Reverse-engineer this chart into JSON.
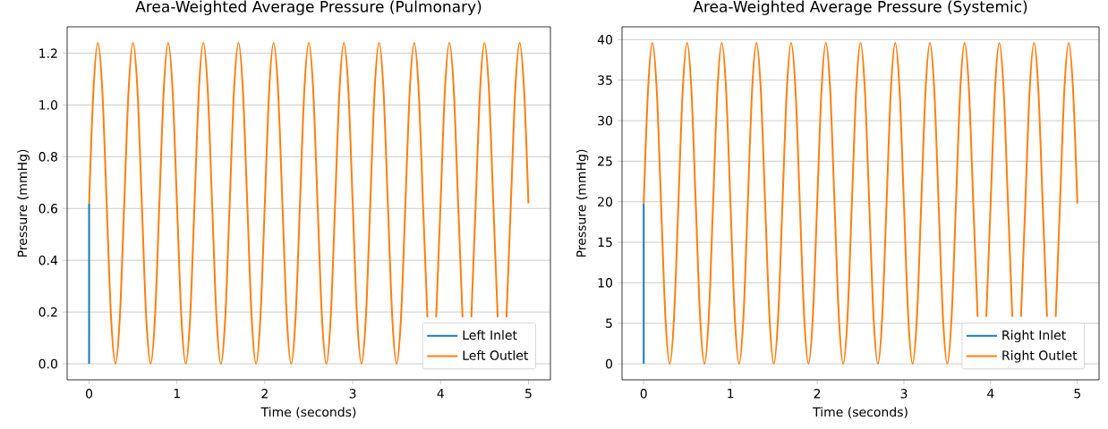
{
  "chart_data": [
    {
      "type": "line",
      "title": "Area-Weighted Average Pressure (Pulmonary)",
      "xlabel": "Time (seconds)",
      "ylabel": "Pressure (mmHg)",
      "xlim": [
        -0.25,
        5.25
      ],
      "ylim": [
        -0.062,
        1.302
      ],
      "xticks": [
        0,
        1,
        2,
        3,
        4,
        5
      ],
      "yticks": [
        {
          "value": 0,
          "label": "0.0"
        },
        {
          "value": 0.2,
          "label": "0.2"
        },
        {
          "value": 0.4,
          "label": "0.4"
        },
        {
          "value": 0.6,
          "label": "0.6"
        },
        {
          "value": 0.8,
          "label": "0.8"
        },
        {
          "value": 1.0,
          "label": "1.0"
        },
        {
          "value": 1.2,
          "label": "1.2"
        }
      ],
      "grid": "y",
      "legend": "bottom right",
      "line_style": "solid",
      "series": [
        {
          "name": "Left Inlet",
          "color": "#1f77b4",
          "x": [
            0,
            0
          ],
          "values": [
            0,
            0.62
          ]
        },
        {
          "name": "Left Outlet",
          "color": "#ff7f0e",
          "x": [
            0,
            0.05,
            0.1,
            0.15,
            0.2,
            0.25,
            0.3,
            0.35,
            0.4,
            0.45,
            0.5,
            0.55,
            0.6,
            0.65,
            0.7,
            0.75,
            0.8,
            0.85,
            0.9,
            0.95,
            1,
            1.05,
            1.1,
            1.15,
            1.2,
            1.25,
            1.3,
            1.35,
            1.4,
            1.45,
            1.5,
            1.55,
            1.6,
            1.65,
            1.7,
            1.75,
            1.8,
            1.85,
            1.9,
            1.95,
            2,
            2.05,
            2.1,
            2.15,
            2.2,
            2.25,
            2.3,
            2.35,
            2.4,
            2.45,
            2.5,
            2.55,
            2.6,
            2.65,
            2.7,
            2.75,
            2.8,
            2.85,
            2.9,
            2.95,
            3,
            3.05,
            3.1,
            3.15,
            3.2,
            3.25,
            3.3,
            3.35,
            3.4,
            3.45,
            3.5,
            3.55,
            3.6,
            3.65,
            3.7,
            3.75,
            3.8,
            3.85,
            3.9,
            3.95,
            4,
            4.05,
            4.1,
            4.15,
            4.2,
            4.25,
            4.3,
            4.35,
            4.4,
            4.45,
            4.5,
            4.55,
            4.6,
            4.65,
            4.7,
            4.75,
            4.8,
            4.85,
            4.9,
            4.95,
            5
          ],
          "values": [
            0.62,
            1.06,
            1.24,
            1.06,
            0.62,
            0.18,
            0,
            0.18,
            0.62,
            1.06,
            1.24,
            1.06,
            0.62,
            0.18,
            0,
            0.18,
            0.62,
            1.06,
            1.24,
            1.06,
            0.62,
            0.18,
            0,
            0.18,
            0.62,
            1.06,
            1.24,
            1.06,
            0.62,
            0.18,
            0,
            0.18,
            0.62,
            1.06,
            1.24,
            1.06,
            0.62,
            0.18,
            0,
            0.18,
            0.62,
            1.06,
            1.24,
            1.06,
            0.62,
            0.18,
            0,
            0.18,
            0.62,
            1.06,
            1.24,
            1.06,
            0.62,
            0.18,
            0,
            0.18,
            0.62,
            1.06,
            1.24,
            1.06,
            0.62,
            0.18,
            0,
            0.18,
            0.62,
            1.06,
            1.24,
            1.06,
            0.62,
            0.18,
            0,
            0.18,
            0.62,
            1.06,
            1.24,
            1.06,
            0.62,
            0.18,
            null,
            0.18,
            0.62,
            1.06,
            1.24,
            1.06,
            0.62,
            0.18,
            null,
            0.18,
            0.62,
            1.06,
            1.24,
            1.06,
            0.62,
            0.18,
            null,
            0.18,
            0.62,
            1.06,
            1.24,
            1.06,
            0.62
          ]
        }
      ]
    },
    {
      "type": "line",
      "title": "Area-Weighted Average Pressure (Systemic)",
      "xlabel": "Time (seconds)",
      "ylabel": "Pressure (mmHg)",
      "xlim": [
        -0.25,
        5.25
      ],
      "ylim": [
        -1.98,
        41.58
      ],
      "xticks": [
        0,
        1,
        2,
        3,
        4,
        5
      ],
      "yticks": [
        0,
        5,
        10,
        15,
        20,
        25,
        30,
        35,
        40
      ],
      "grid": "y",
      "legend": "bottom right",
      "line_style": "solid",
      "series": [
        {
          "name": "Right Inlet",
          "color": "#1f77b4",
          "x": [
            0,
            0
          ],
          "values": [
            0,
            19.8
          ]
        },
        {
          "name": "Right Outlet",
          "color": "#ff7f0e",
          "x": [
            0,
            0.05,
            0.1,
            0.15,
            0.2,
            0.25,
            0.3,
            0.35,
            0.4,
            0.45,
            0.5,
            0.55,
            0.6,
            0.65,
            0.7,
            0.75,
            0.8,
            0.85,
            0.9,
            0.95,
            1,
            1.05,
            1.1,
            1.15,
            1.2,
            1.25,
            1.3,
            1.35,
            1.4,
            1.45,
            1.5,
            1.55,
            1.6,
            1.65,
            1.7,
            1.75,
            1.8,
            1.85,
            1.9,
            1.95,
            2,
            2.05,
            2.1,
            2.15,
            2.2,
            2.25,
            2.3,
            2.35,
            2.4,
            2.45,
            2.5,
            2.55,
            2.6,
            2.65,
            2.7,
            2.75,
            2.8,
            2.85,
            2.9,
            2.95,
            3,
            3.05,
            3.1,
            3.15,
            3.2,
            3.25,
            3.3,
            3.35,
            3.4,
            3.45,
            3.5,
            3.55,
            3.6,
            3.65,
            3.7,
            3.75,
            3.8,
            3.85,
            3.9,
            3.95,
            4,
            4.05,
            4.1,
            4.15,
            4.2,
            4.25,
            4.3,
            4.35,
            4.4,
            4.45,
            4.5,
            4.55,
            4.6,
            4.65,
            4.7,
            4.75,
            4.8,
            4.85,
            4.9,
            4.95,
            5
          ],
          "values": [
            19.8,
            33.8,
            39.6,
            33.8,
            19.8,
            5.8,
            0,
            5.8,
            19.8,
            33.8,
            39.6,
            33.8,
            19.8,
            5.8,
            0,
            5.8,
            19.8,
            33.8,
            39.6,
            33.8,
            19.8,
            5.8,
            0,
            5.8,
            19.8,
            33.8,
            39.6,
            33.8,
            19.8,
            5.8,
            0,
            5.8,
            19.8,
            33.8,
            39.6,
            33.8,
            19.8,
            5.8,
            0,
            5.8,
            19.8,
            33.8,
            39.6,
            33.8,
            19.8,
            5.8,
            0,
            5.8,
            19.8,
            33.8,
            39.6,
            33.8,
            19.8,
            5.8,
            0,
            5.8,
            19.8,
            33.8,
            39.6,
            33.8,
            19.8,
            5.8,
            0,
            5.8,
            19.8,
            33.8,
            39.6,
            33.8,
            19.8,
            5.8,
            0,
            5.8,
            19.8,
            33.8,
            39.6,
            33.8,
            19.8,
            5.8,
            null,
            5.8,
            19.8,
            33.8,
            39.6,
            33.8,
            19.8,
            5.8,
            null,
            5.8,
            19.8,
            33.8,
            39.6,
            33.8,
            19.8,
            5.8,
            null,
            5.8,
            19.8,
            33.8,
            39.6,
            33.8,
            19.8
          ]
        }
      ]
    }
  ]
}
